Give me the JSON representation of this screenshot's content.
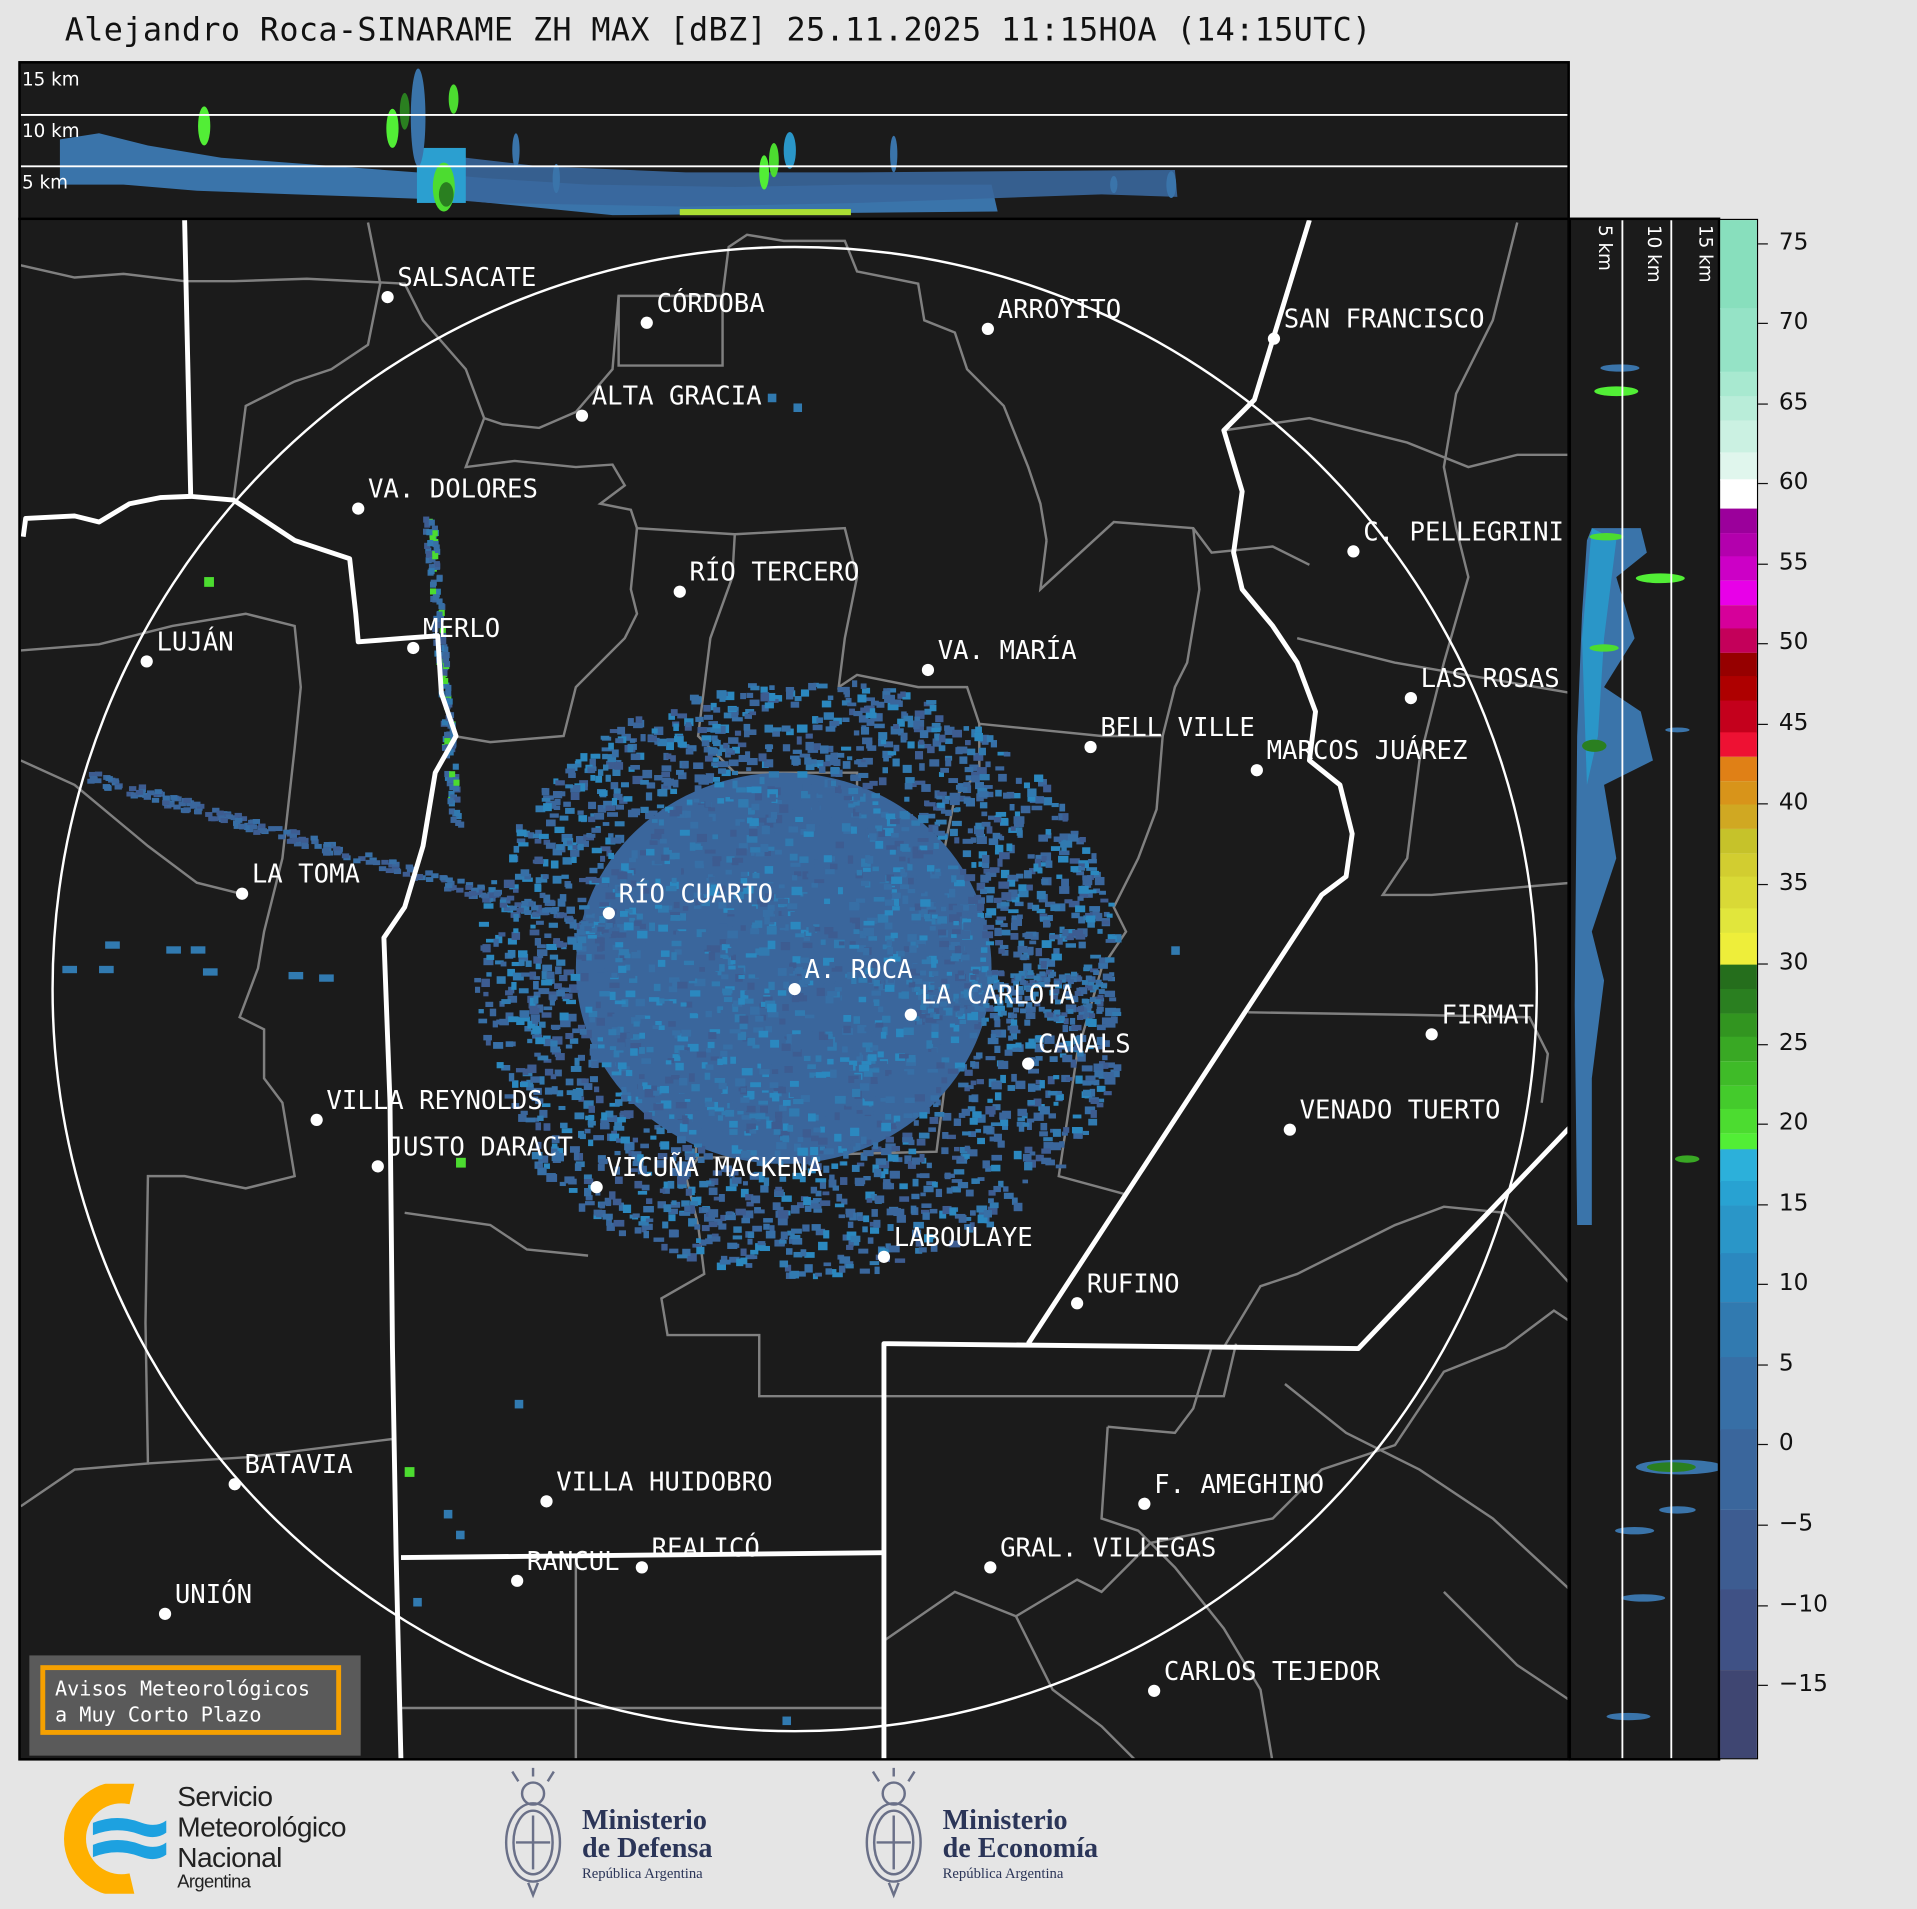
{
  "title": "Alejandro Roca-SINARAME ZH MAX [dBZ] 25.11.2025 11:15HOA (14:15UTC)",
  "top_section": {
    "height_labels": [
      "15 km",
      "10 km",
      "5 km"
    ]
  },
  "right_section": {
    "height_labels": [
      "5 km",
      "10 km",
      "15 km"
    ]
  },
  "radar_site": "A. ROCA",
  "cities": [
    {
      "name": "SALSACATE"
    },
    {
      "name": "CÓRDOBA"
    },
    {
      "name": "ARROYITO"
    },
    {
      "name": "SAN FRANCISCO"
    },
    {
      "name": "ALTA GRACIA"
    },
    {
      "name": "VA. DOLORES"
    },
    {
      "name": "C. PELLEGRINI"
    },
    {
      "name": "RÍO TERCERO"
    },
    {
      "name": "MERLO"
    },
    {
      "name": "LUJÁN"
    },
    {
      "name": "VA. MARÍA"
    },
    {
      "name": "LAS ROSAS"
    },
    {
      "name": "BELL VILLE"
    },
    {
      "name": "MARCOS JUÁREZ"
    },
    {
      "name": "LA TOMA"
    },
    {
      "name": "RÍO CUARTO"
    },
    {
      "name": "A. ROCA"
    },
    {
      "name": "LA CARLOTA"
    },
    {
      "name": "FIRMAT"
    },
    {
      "name": "CANALS"
    },
    {
      "name": "VILLA REYNOLDS"
    },
    {
      "name": "VENADO TUERTO"
    },
    {
      "name": "JUSTO DARACT"
    },
    {
      "name": "VICUÑA MACKENA"
    },
    {
      "name": "LABOULAYE"
    },
    {
      "name": "RUFINO"
    },
    {
      "name": "BATAVIA"
    },
    {
      "name": "VILLA HUIDOBRO"
    },
    {
      "name": "F. AMEGHINO"
    },
    {
      "name": "RANCUL"
    },
    {
      "name": "REALICÓ"
    },
    {
      "name": "GRAL. VILLEGAS"
    },
    {
      "name": "UNIÓN"
    },
    {
      "name": "CARLOS TEJEDOR"
    }
  ],
  "colorbar": {
    "unit": "dBZ",
    "range": [
      -19.5,
      76.5
    ],
    "ticks": [
      75,
      70,
      65,
      60,
      55,
      50,
      45,
      40,
      35,
      30,
      25,
      20,
      15,
      10,
      5,
      0,
      -5,
      -10,
      -15
    ],
    "tick_labels": [
      "75",
      "70",
      "65",
      "60",
      "55",
      "50",
      "45",
      "40",
      "35",
      "30",
      "25",
      "20",
      "15",
      "10",
      "5",
      "0",
      "−5",
      "−10",
      "−15"
    ],
    "bins": [
      [
        71,
        76.5,
        "#88dfbd"
      ],
      [
        67,
        71,
        "#95e3c6"
      ],
      [
        65.5,
        67,
        "#a8e9d0"
      ],
      [
        64,
        65.5,
        "#b9edd9"
      ],
      [
        62,
        64,
        "#cbf1e2"
      ],
      [
        60.3,
        62,
        "#e0f6ed"
      ],
      [
        58.5,
        60.3,
        "#ffffff"
      ],
      [
        57,
        58.5,
        "#9b009b"
      ],
      [
        55.5,
        57,
        "#b300ad"
      ],
      [
        54,
        55.5,
        "#cc00c6"
      ],
      [
        52.5,
        54,
        "#e800e8"
      ],
      [
        51,
        52.5,
        "#d6009a"
      ],
      [
        49.5,
        51,
        "#c4005a"
      ],
      [
        48,
        49.5,
        "#960000"
      ],
      [
        46.5,
        48,
        "#ae0000"
      ],
      [
        44.5,
        46.5,
        "#c4001c"
      ],
      [
        43,
        44.5,
        "#ee1133"
      ],
      [
        41.5,
        43,
        "#e08016"
      ],
      [
        40,
        41.5,
        "#d8941a"
      ],
      [
        38.5,
        40,
        "#d0a822"
      ],
      [
        37,
        38.5,
        "#c6c22a"
      ],
      [
        35.5,
        37,
        "#d2cd30"
      ],
      [
        33.5,
        35.5,
        "#d9d936"
      ],
      [
        32,
        33.5,
        "#e1e63c"
      ],
      [
        30,
        32,
        "#eeee3a"
      ],
      [
        28.5,
        30,
        "#256e1c"
      ],
      [
        27,
        28.5,
        "#2a7f20"
      ],
      [
        25.5,
        27,
        "#329520"
      ],
      [
        24,
        25.5,
        "#39a824"
      ],
      [
        22.5,
        24,
        "#3fbb28"
      ],
      [
        21,
        22.5,
        "#44cb2c"
      ],
      [
        19.5,
        21,
        "#4cdc30"
      ],
      [
        18.5,
        19.5,
        "#52ee36"
      ],
      [
        16.5,
        18.5,
        "#2cb0da"
      ],
      [
        15,
        16.5,
        "#28a2d2"
      ],
      [
        12,
        15,
        "#2a96c8"
      ],
      [
        9,
        12,
        "#2b88bf"
      ],
      [
        5.5,
        9,
        "#317ab0"
      ],
      [
        1,
        5.5,
        "#376fa6"
      ],
      [
        -4,
        1,
        "#3a669c"
      ],
      [
        -9,
        -4,
        "#3d5c91"
      ],
      [
        -14,
        -9,
        "#3f5185"
      ],
      [
        -19.5,
        -14,
        "#3f4672"
      ]
    ]
  },
  "avisos": {
    "line1": "Avisos Meteorológicos",
    "line2": "a Muy Corto Plazo"
  },
  "logos": {
    "smn": {
      "line1": "Servicio",
      "line2": "Meteorológico",
      "line3": "Nacional",
      "line4": "Argentina"
    },
    "defensa": {
      "line1": "Ministerio",
      "line2": "de Defensa",
      "line3": "República Argentina"
    },
    "economia": {
      "line1": "Ministerio",
      "line2": "de Economía",
      "line3": "República Argentina"
    }
  },
  "colors": {
    "background": "#1b1b1b",
    "border_province": "#ffffff",
    "border_department": "#808080",
    "accent_avisos": "#f5a000",
    "smn_yellow": "#ffb000",
    "smn_blue": "#1da1e0",
    "ministry_navy": "#2b3558"
  }
}
